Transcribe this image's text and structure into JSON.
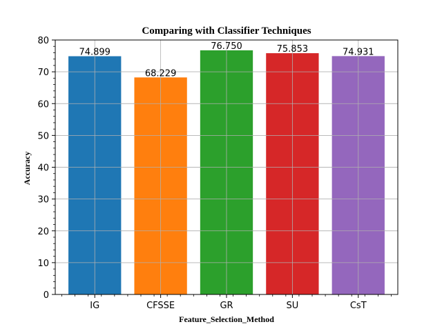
{
  "chart_data": {
    "type": "bar",
    "title": "Comparing with Classifier Techniques",
    "xlabel": "Feature_Selection_Method",
    "ylabel": "Accuracy",
    "categories": [
      "IG",
      "CFSSE",
      "GR",
      "SU",
      "CsT"
    ],
    "values": [
      74.899,
      68.229,
      76.75,
      75.853,
      74.931
    ],
    "data_labels": [
      "74.899",
      "68.229",
      "76.750",
      "75.853",
      "74.931"
    ],
    "colors": [
      "#1f77b4",
      "#ff7f0e",
      "#2ca02c",
      "#d62728",
      "#9467bd"
    ],
    "ylim": [
      0,
      80
    ],
    "yticks": [
      "0",
      "10",
      "20",
      "30",
      "40",
      "50",
      "60",
      "70",
      "80"
    ],
    "ytick_values": [
      0,
      10,
      20,
      30,
      40,
      50,
      60,
      70,
      80
    ],
    "grid": true,
    "minor_ticks": true,
    "legend": "none"
  }
}
